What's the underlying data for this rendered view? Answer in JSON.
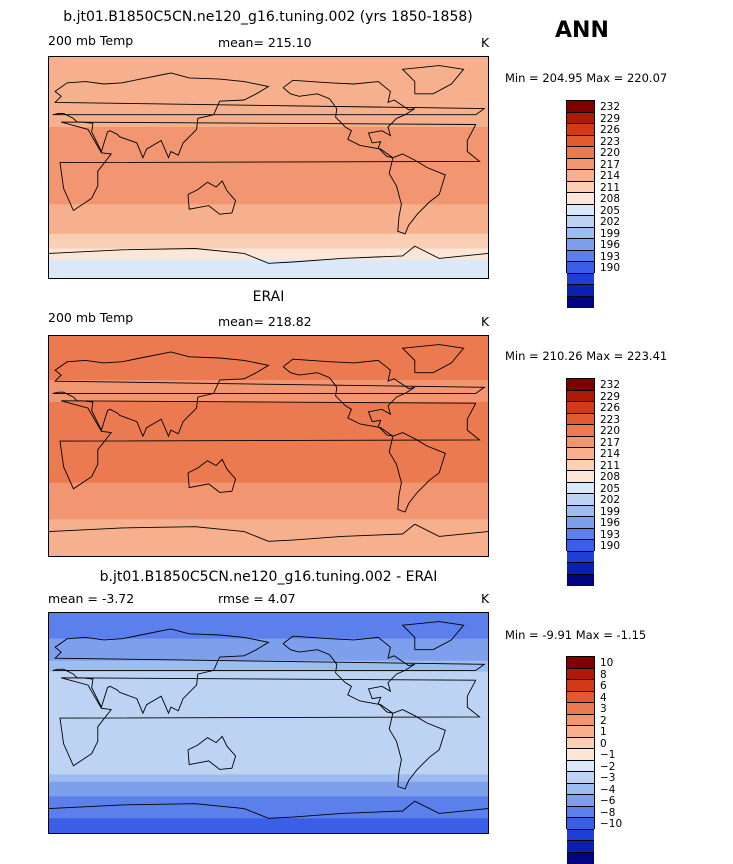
{
  "season": "ANN",
  "units": "K",
  "colors_warm": [
    "#fbe6d8",
    "#fbcfb4",
    "#f6b08d",
    "#f19670",
    "#ec7a50",
    "#e25a2f",
    "#d13a16",
    "#ad1a08",
    "#7f0000"
  ],
  "colors_cool": [
    "#dbe8f8",
    "#bdd3f3",
    "#9dbcef",
    "#7ea0ec",
    "#5c80eb",
    "#3a5ee6",
    "#1f3ed8",
    "#0c1fb3",
    "#000480"
  ],
  "coast_color": "#000000",
  "chart_data": [
    {
      "type": "heatmap",
      "title": "b.jt01.B1850C5CN.ne120_g16.tuning.002 (yrs 1850-1858)",
      "left_label": "200 mb Temp",
      "mean_text": "mean= 215.10",
      "unit": "K",
      "min": 204.95,
      "max": 220.07,
      "minmax_text": "Min = 204.95 Max = 220.07",
      "levels": [
        "232",
        "229",
        "226",
        "223",
        "220",
        "217",
        "214",
        "211",
        "208",
        "205",
        "202",
        "199",
        "196",
        "193",
        "190"
      ],
      "bands_lat_value": [
        [
          90,
          214
        ],
        [
          60,
          214.5
        ],
        [
          45,
          215.5
        ],
        [
          30,
          217.5
        ],
        [
          10,
          218.5
        ],
        [
          -10,
          218
        ],
        [
          -25,
          217.5
        ],
        [
          -40,
          215.5
        ],
        [
          -55,
          214
        ],
        [
          -65,
          211
        ],
        [
          -75,
          208
        ],
        [
          -90,
          206
        ]
      ]
    },
    {
      "type": "heatmap",
      "title": "ERAI",
      "left_label": "200 mb Temp",
      "mean_text": "mean= 218.82",
      "unit": "K",
      "min": 210.26,
      "max": 223.41,
      "minmax_text": "Min = 210.26 Max = 223.41",
      "levels": [
        "232",
        "229",
        "226",
        "223",
        "220",
        "217",
        "214",
        "211",
        "208",
        "205",
        "202",
        "199",
        "196",
        "193",
        "190"
      ],
      "bands_lat_value": [
        [
          90,
          221.5
        ],
        [
          60,
          220.5
        ],
        [
          45,
          219
        ],
        [
          30,
          220.5
        ],
        [
          10,
          221
        ],
        [
          -10,
          220.5
        ],
        [
          -30,
          220
        ],
        [
          -45,
          217.5
        ],
        [
          -60,
          217
        ],
        [
          -75,
          215
        ],
        [
          -90,
          214
        ]
      ]
    },
    {
      "type": "heatmap",
      "title": "b.jt01.B1850C5CN.ne120_g16.tuning.002 - ERAI",
      "left_label": "mean =   -3.72",
      "mean_text": "rmse =    4.07",
      "unit": "K",
      "min": -9.91,
      "max": -1.15,
      "minmax_text": "Min =  -9.91 Max =  -1.15",
      "levels": [
        "10",
        "8",
        "6",
        "4",
        "3",
        "2",
        "1",
        "0",
        "−1",
        "−2",
        "−3",
        "−4",
        "−6",
        "−8",
        "−10"
      ],
      "bands_lat_value": [
        [
          90,
          -8
        ],
        [
          75,
          -6.5
        ],
        [
          60,
          -5
        ],
        [
          45,
          -3.5
        ],
        [
          35,
          -2
        ],
        [
          20,
          -2.5
        ],
        [
          0,
          -2.5
        ],
        [
          -20,
          -2.8
        ],
        [
          -35,
          -2.2
        ],
        [
          -45,
          -3.5
        ],
        [
          -55,
          -5
        ],
        [
          -65,
          -7
        ],
        [
          -90,
          -9
        ]
      ]
    }
  ]
}
